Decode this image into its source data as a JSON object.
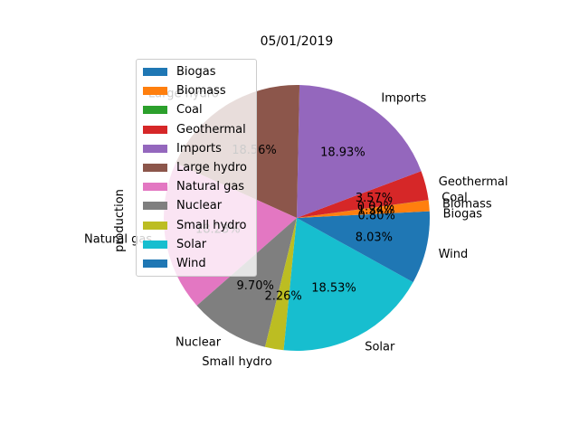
{
  "chart_data": {
    "type": "pie",
    "title": "05/01/2019",
    "ylabel": "production",
    "legend_placement": "upper-left",
    "slices": [
      {
        "name": "Biogas",
        "percent": 0.8,
        "color": "#1f77b4",
        "label": "0.80%"
      },
      {
        "name": "Biomass",
        "percent": 1.34,
        "color": "#ff7f0e",
        "label": "1.34%"
      },
      {
        "name": "Coal",
        "percent": 0.02,
        "color": "#2ca02c",
        "label": "0.02%"
      },
      {
        "name": "Geothermal",
        "percent": 3.57,
        "color": "#d62728",
        "label": "3.57%"
      },
      {
        "name": "Imports",
        "percent": 18.93,
        "color": "#9467bd",
        "label": "18.93%"
      },
      {
        "name": "Large hydro",
        "percent": 18.56,
        "color": "#8c564b",
        "label": "18.56%"
      },
      {
        "name": "Natural gas",
        "percent": 18.23,
        "color": "#e377c2",
        "label": "18.23%"
      },
      {
        "name": "Nuclear",
        "percent": 9.7,
        "color": "#7f7f7f",
        "label": "9.70%"
      },
      {
        "name": "Small hydro",
        "percent": 2.26,
        "color": "#bcbd22",
        "label": "2.26%"
      },
      {
        "name": "Solar",
        "percent": 18.53,
        "color": "#17becf",
        "label": "18.53%"
      },
      {
        "name": "Wind",
        "percent": 8.03,
        "color": "#1f77b4",
        "label": "8.03%"
      }
    ]
  }
}
